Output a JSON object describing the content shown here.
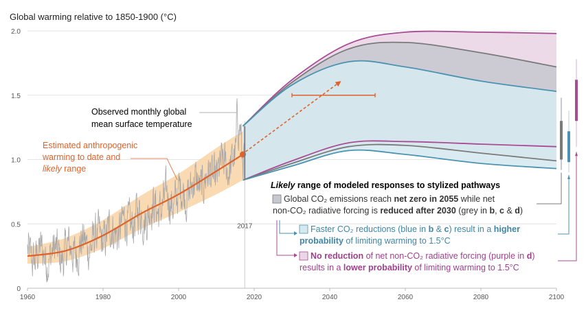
{
  "chart_data": {
    "type": "area",
    "title": "Global warming relative to 1850-1900 (°C)",
    "xlim": [
      1960,
      2100
    ],
    "ylim": [
      0,
      2.0
    ],
    "x_ticks": [
      1960,
      1980,
      2000,
      2020,
      2040,
      2060,
      2080,
      2100
    ],
    "y_ticks": [
      0,
      0.5,
      1.0,
      1.5,
      2.0
    ],
    "y_tick_labels": [
      "0",
      "0.5",
      "1.0",
      "1.5",
      "2.0"
    ],
    "grid": "horizontal",
    "marker_year": "2017",
    "annotations": {
      "observed": [
        "Observed monthly global",
        "mean surface temperature"
      ],
      "anthropogenic_l1": "Estimated anthropogenic",
      "anthropogenic_l2": "warming to date and",
      "anthropogenic_l3a": "likely",
      "anthropogenic_l3b": " range"
    },
    "legend": {
      "heading_a": "Likely",
      "heading_b": " range of modeled responses to stylized pathways",
      "grey_l1a": "Global CO₂ emissions reach ",
      "grey_l1b": "net zero in 2055",
      "grey_l1c": " while net",
      "grey_l2a": "non-CO₂ radiative forcing is ",
      "grey_l2b": "reduced after 2030",
      "grey_l2c": " (grey in ",
      "grey_l2d": "b",
      "grey_l2e": ", ",
      "grey_l2f": "c",
      "grey_l2g": " & ",
      "grey_l2h": "d",
      "grey_l2i": ")",
      "blue_l1a": "Faster CO₂ reductions (blue in ",
      "blue_l1b": "b",
      "blue_l1c": " & ",
      "blue_l1d": "c",
      "blue_l1e": ") result in a ",
      "blue_l1f": "higher",
      "blue_l2a": "probability",
      "blue_l2b": " of limiting warming to 1.5°C",
      "purple_l1a": "No reduction",
      "purple_l1b": " of net non-CO₂ radiative forcing (purple in ",
      "purple_l1c": "d",
      "purple_l1d": ")",
      "purple_l2a": "results in a ",
      "purple_l2b": "lower probability",
      "purple_l2c": " of limiting warming to 1.5°C"
    },
    "colors": {
      "observed": "#a8a8a8",
      "anthropogenic_line": "#e0622a",
      "anthropogenic_band": "#f9d3a6",
      "grey": "#7a7a7a",
      "grey_fill": "#c7c7cf",
      "blue": "#4b93b1",
      "blue_fill": "#d6e9ef",
      "purple": "#a84c95",
      "purple_fill": "#ead6e6"
    },
    "series": [
      {
        "id": "anthropogenic",
        "x": [
          1960,
          1970,
          1980,
          1990,
          2000,
          2010,
          2017
        ],
        "y": [
          0.25,
          0.29,
          0.41,
          0.58,
          0.73,
          0.91,
          1.04
        ]
      },
      {
        "id": "anthropogenic_band",
        "x": [
          1960,
          1970,
          1980,
          1990,
          2000,
          2010,
          2017
        ],
        "y_low": [
          0.19,
          0.21,
          0.31,
          0.46,
          0.59,
          0.73,
          0.84
        ],
        "y_high": [
          0.32,
          0.39,
          0.53,
          0.72,
          0.89,
          1.09,
          1.22
        ]
      },
      {
        "id": "grey",
        "x": [
          2017,
          2030,
          2045,
          2060,
          2080,
          2100
        ],
        "y_high": [
          1.26,
          1.6,
          1.86,
          1.91,
          1.83,
          1.72
        ],
        "y_low": [
          0.84,
          0.97,
          1.1,
          1.11,
          1.05,
          0.99
        ]
      },
      {
        "id": "blue",
        "x": [
          2017,
          2030,
          2045,
          2060,
          2080,
          2100
        ],
        "y_high": [
          1.26,
          1.58,
          1.76,
          1.72,
          1.61,
          1.53
        ],
        "y_low": [
          0.84,
          0.95,
          1.07,
          1.04,
          0.97,
          0.93
        ]
      },
      {
        "id": "purple",
        "x": [
          2017,
          2030,
          2045,
          2060,
          2080,
          2100
        ],
        "y_high": [
          1.26,
          1.62,
          1.9,
          1.99,
          1.99,
          1.98
        ],
        "y_low": [
          0.84,
          0.99,
          1.13,
          1.14,
          1.12,
          1.1
        ]
      }
    ],
    "projection_arrow": {
      "x": [
        2017,
        2043
      ],
      "y": [
        1.04,
        1.61
      ]
    },
    "uncertainty_bar": {
      "x": [
        2030,
        2052
      ],
      "y": 1.5
    },
    "whisker_bars": [
      {
        "id": "grey",
        "range": [
          0.92,
          1.48
        ],
        "likely": [
          1.0,
          1.3
        ]
      },
      {
        "id": "blue",
        "range": [
          0.9,
          1.38
        ],
        "likely": [
          0.98,
          1.22
        ]
      },
      {
        "id": "purple",
        "range": [
          1.1,
          1.78
        ],
        "likely": [
          1.3,
          1.62
        ]
      }
    ],
    "observed_monthly": {
      "x_start": 1960,
      "x_end": 2017.5,
      "step_years": 0.0833,
      "trend": [
        [
          1960,
          0.25
        ],
        [
          1970,
          0.27
        ],
        [
          1980,
          0.4
        ],
        [
          1990,
          0.56
        ],
        [
          2000,
          0.72
        ],
        [
          2010,
          0.89
        ],
        [
          2017,
          1.05
        ]
      ],
      "noise_amplitude": 0.15
    }
  }
}
